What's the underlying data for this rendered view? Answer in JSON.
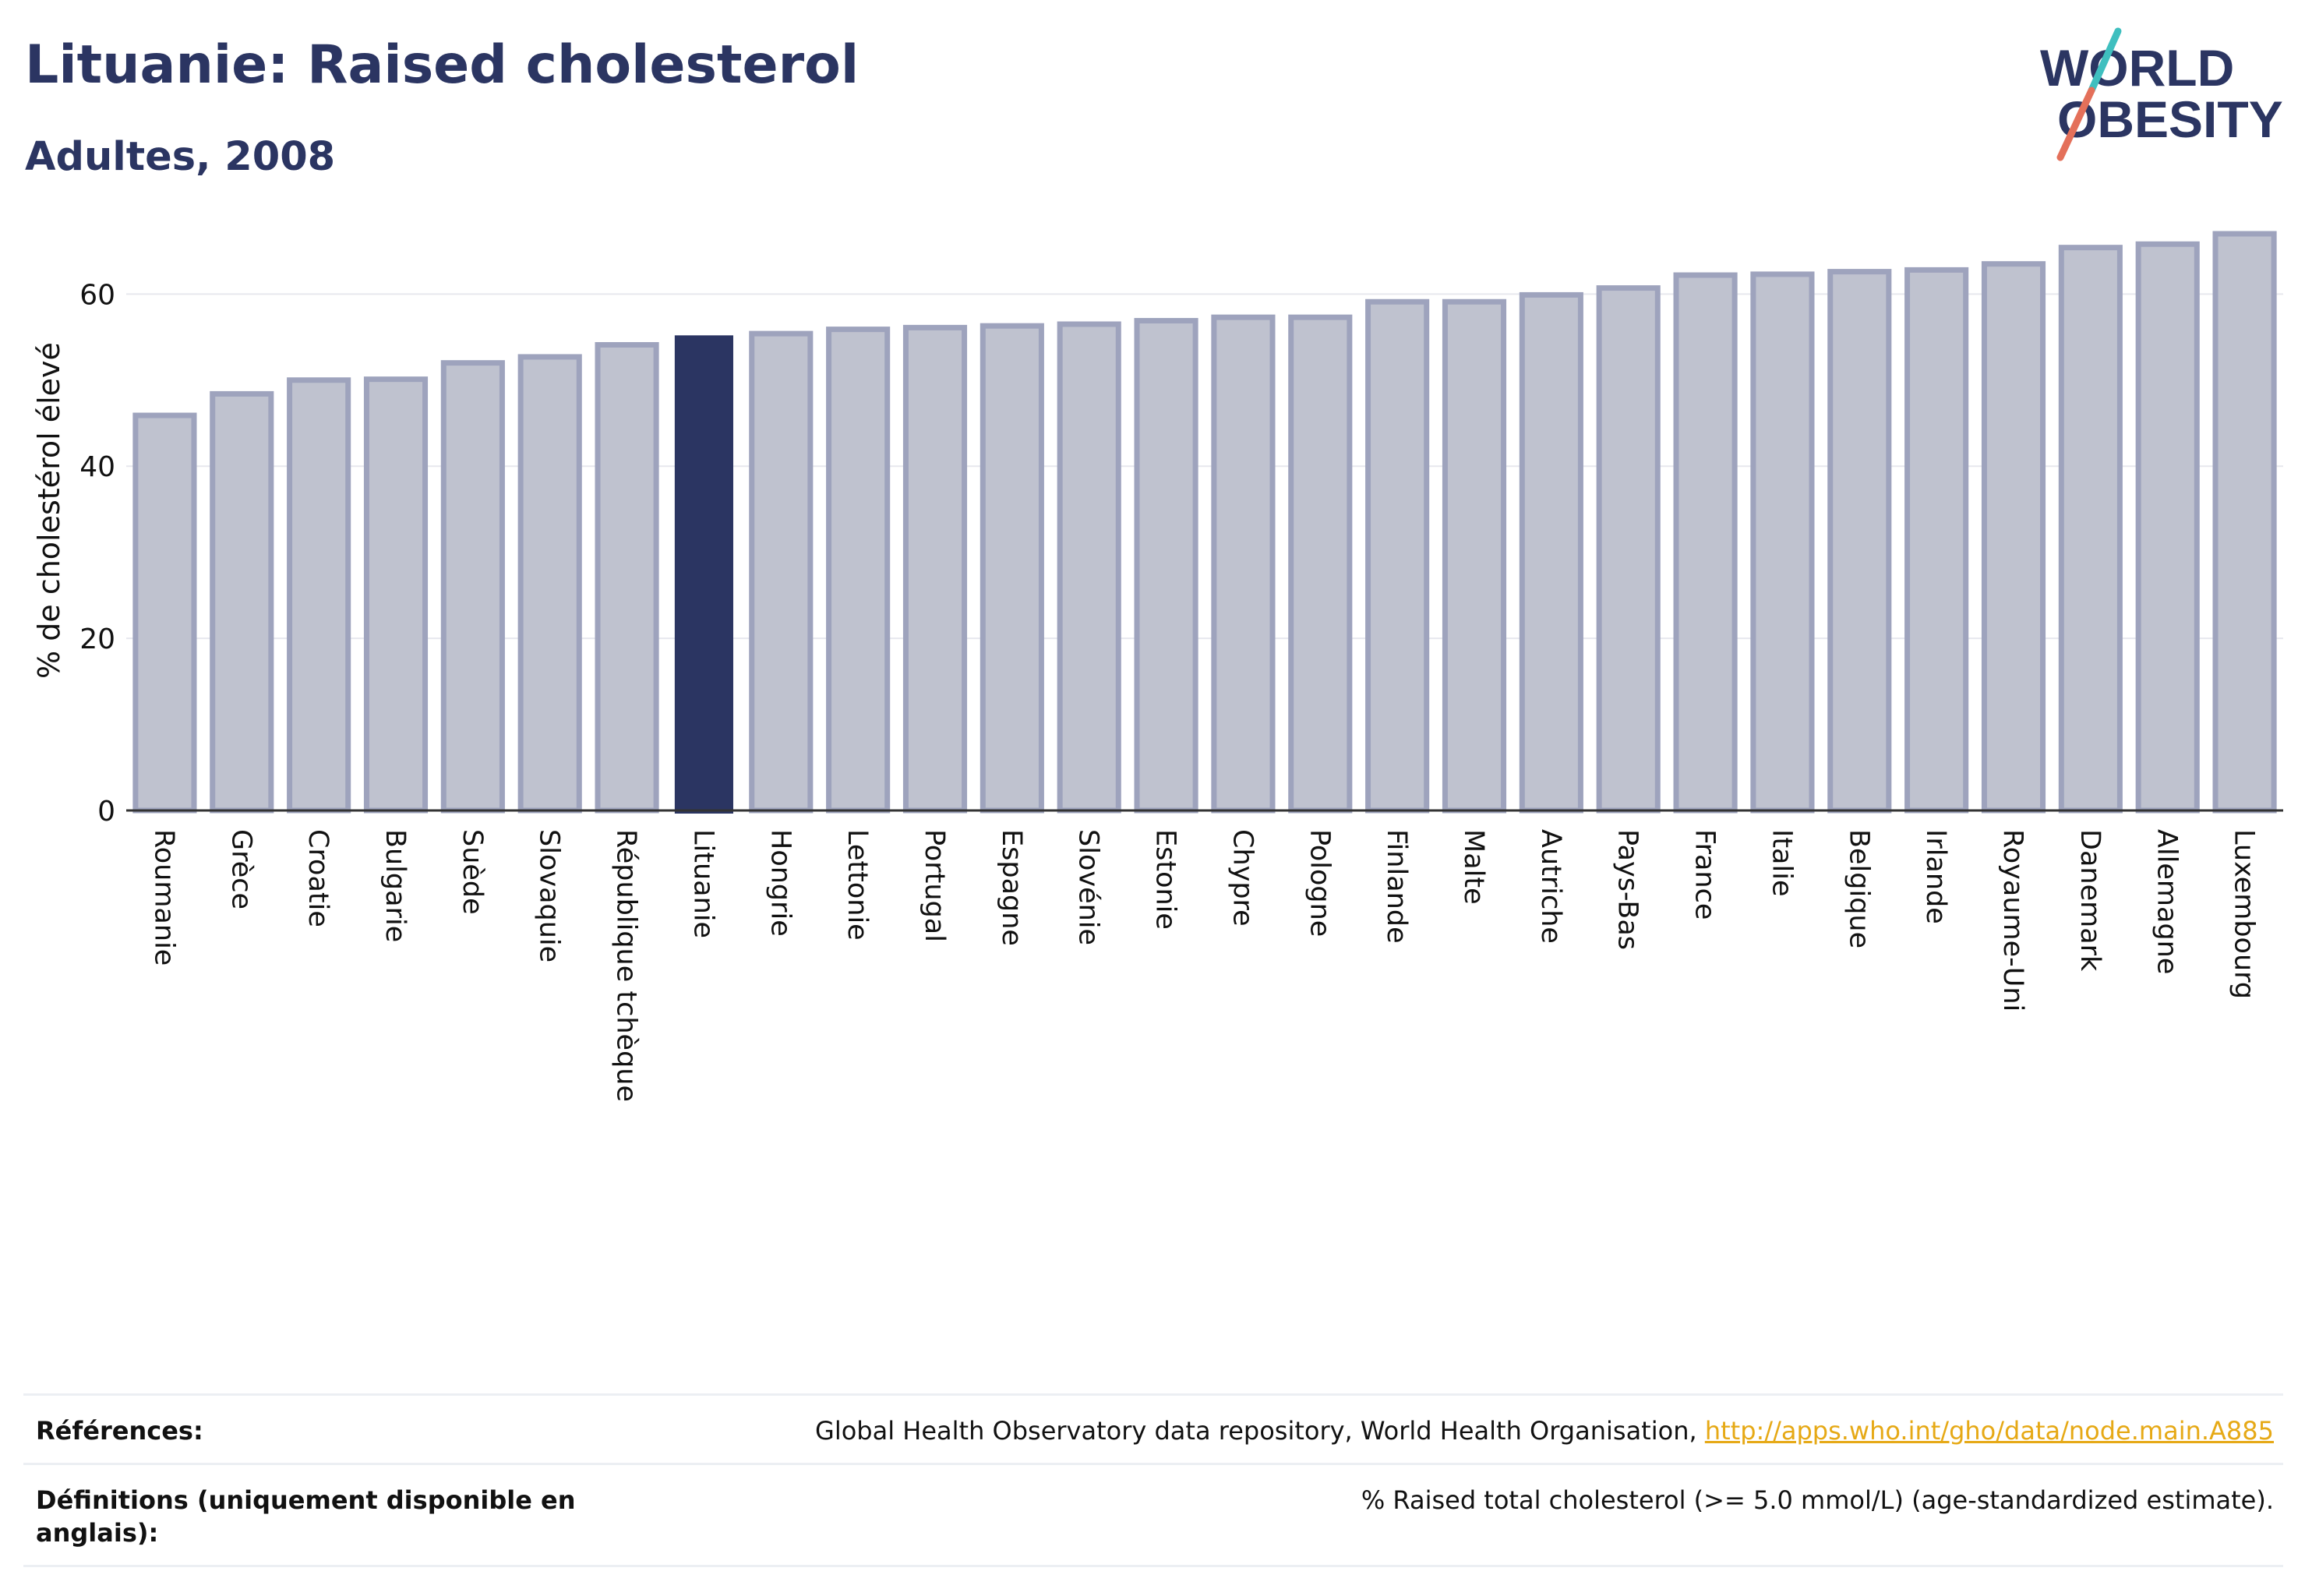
{
  "header": {
    "title": "Lituanie: Raised cholesterol",
    "subtitle": "Adultes, 2008"
  },
  "logo": {
    "line1": "WORLD",
    "line2": "OBESITY",
    "colors": {
      "text": "#2b3562",
      "slash_top": "#3fbfbf",
      "slash_bottom": "#e4705a"
    }
  },
  "colors": {
    "highlight": "#2b3562",
    "bar_fill": "#bfc2cf",
    "bar_stroke": "#9ea3bd",
    "grid": "#e7e8ee",
    "axis": "#333333"
  },
  "chart_data": {
    "type": "bar",
    "ylabel": "% de cholestérol élevé",
    "ylim": [
      0,
      67
    ],
    "yticks": [
      0,
      20,
      40,
      60
    ],
    "grid": true,
    "highlight": "Lituanie",
    "categories": [
      "Roumanie",
      "Grèce",
      "Croatie",
      "Bulgarie",
      "Suède",
      "Slovaquie",
      "République tchèque",
      "Lituanie",
      "Hongrie",
      "Lettonie",
      "Portugal",
      "Espagne",
      "Slovénie",
      "Estonie",
      "Chypre",
      "Pologne",
      "Finlande",
      "Malte",
      "Autriche",
      "Pays-Bas",
      "France",
      "Italie",
      "Belgique",
      "Irlande",
      "Royaume-Uni",
      "Danemark",
      "Allemagne",
      "Luxembourg"
    ],
    "values": [
      45.9,
      48.4,
      50.0,
      50.1,
      52.0,
      52.7,
      54.1,
      55.2,
      55.4,
      55.9,
      56.1,
      56.3,
      56.5,
      56.9,
      57.3,
      57.3,
      59.1,
      59.1,
      59.9,
      60.7,
      62.2,
      62.3,
      62.6,
      62.8,
      63.5,
      65.4,
      65.8,
      67.0
    ]
  },
  "footer": {
    "references_label": "Références:",
    "references_text": "Global Health Observatory data repository, World Health Organisation, ",
    "references_link": "http://apps.who.int/gho/data/node.main.A885",
    "definitions_label": "Définitions (uniquement disponible en anglais):",
    "definitions_text": "% Raised total cholesterol (>= 5.0 mmol/L) (age-standardized estimate)."
  }
}
